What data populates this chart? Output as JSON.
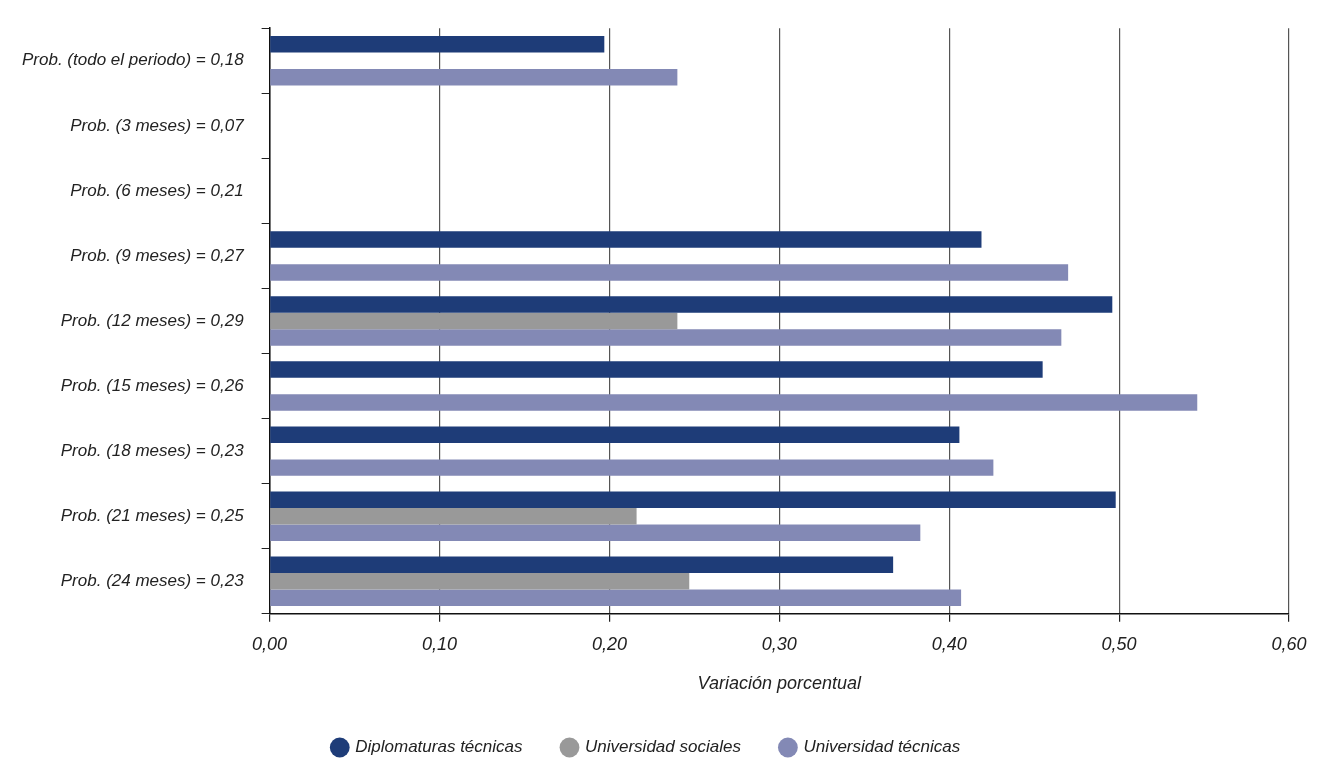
{
  "chart_data": {
    "type": "bar",
    "orientation": "horizontal",
    "categories": [
      "Prob. (todo el periodo) = 0,18",
      "Prob. (3 meses) = 0,07",
      "Prob. (6 meses) = 0,21",
      "Prob. (9 meses) = 0,27",
      "Prob. (12 meses) = 0,29",
      "Prob. (15 meses) = 0,26",
      "Prob. (18 meses) = 0,23",
      "Prob. (21 meses) = 0,25",
      "Prob. (24 meses) = 0,23"
    ],
    "series": [
      {
        "name": "Diplomaturas técnicas",
        "color": "#1e3c78",
        "values": [
          0.197,
          null,
          null,
          0.419,
          0.496,
          0.455,
          0.406,
          0.498,
          0.367
        ]
      },
      {
        "name": "Universidad sociales",
        "color": "#999999",
        "values": [
          null,
          null,
          null,
          null,
          0.24,
          null,
          null,
          0.216,
          0.247
        ]
      },
      {
        "name": "Universidad técnicas",
        "color": "#8389b5",
        "values": [
          0.24,
          null,
          null,
          0.47,
          0.466,
          0.546,
          0.426,
          0.383,
          0.407
        ]
      }
    ],
    "xlabel": "Variación porcentual",
    "xlim": [
      0,
      0.6
    ],
    "xticks": [
      {
        "value": 0,
        "label": "0,00"
      },
      {
        "value": 0.1,
        "label": "0,10"
      },
      {
        "value": 0.2,
        "label": "0,20"
      },
      {
        "value": 0.3,
        "label": "0,30"
      },
      {
        "value": 0.4,
        "label": "0,40"
      },
      {
        "value": 0.5,
        "label": "0,50"
      },
      {
        "value": 0.6,
        "label": "0,60"
      }
    ],
    "grid": "x",
    "legend": "bottom"
  }
}
